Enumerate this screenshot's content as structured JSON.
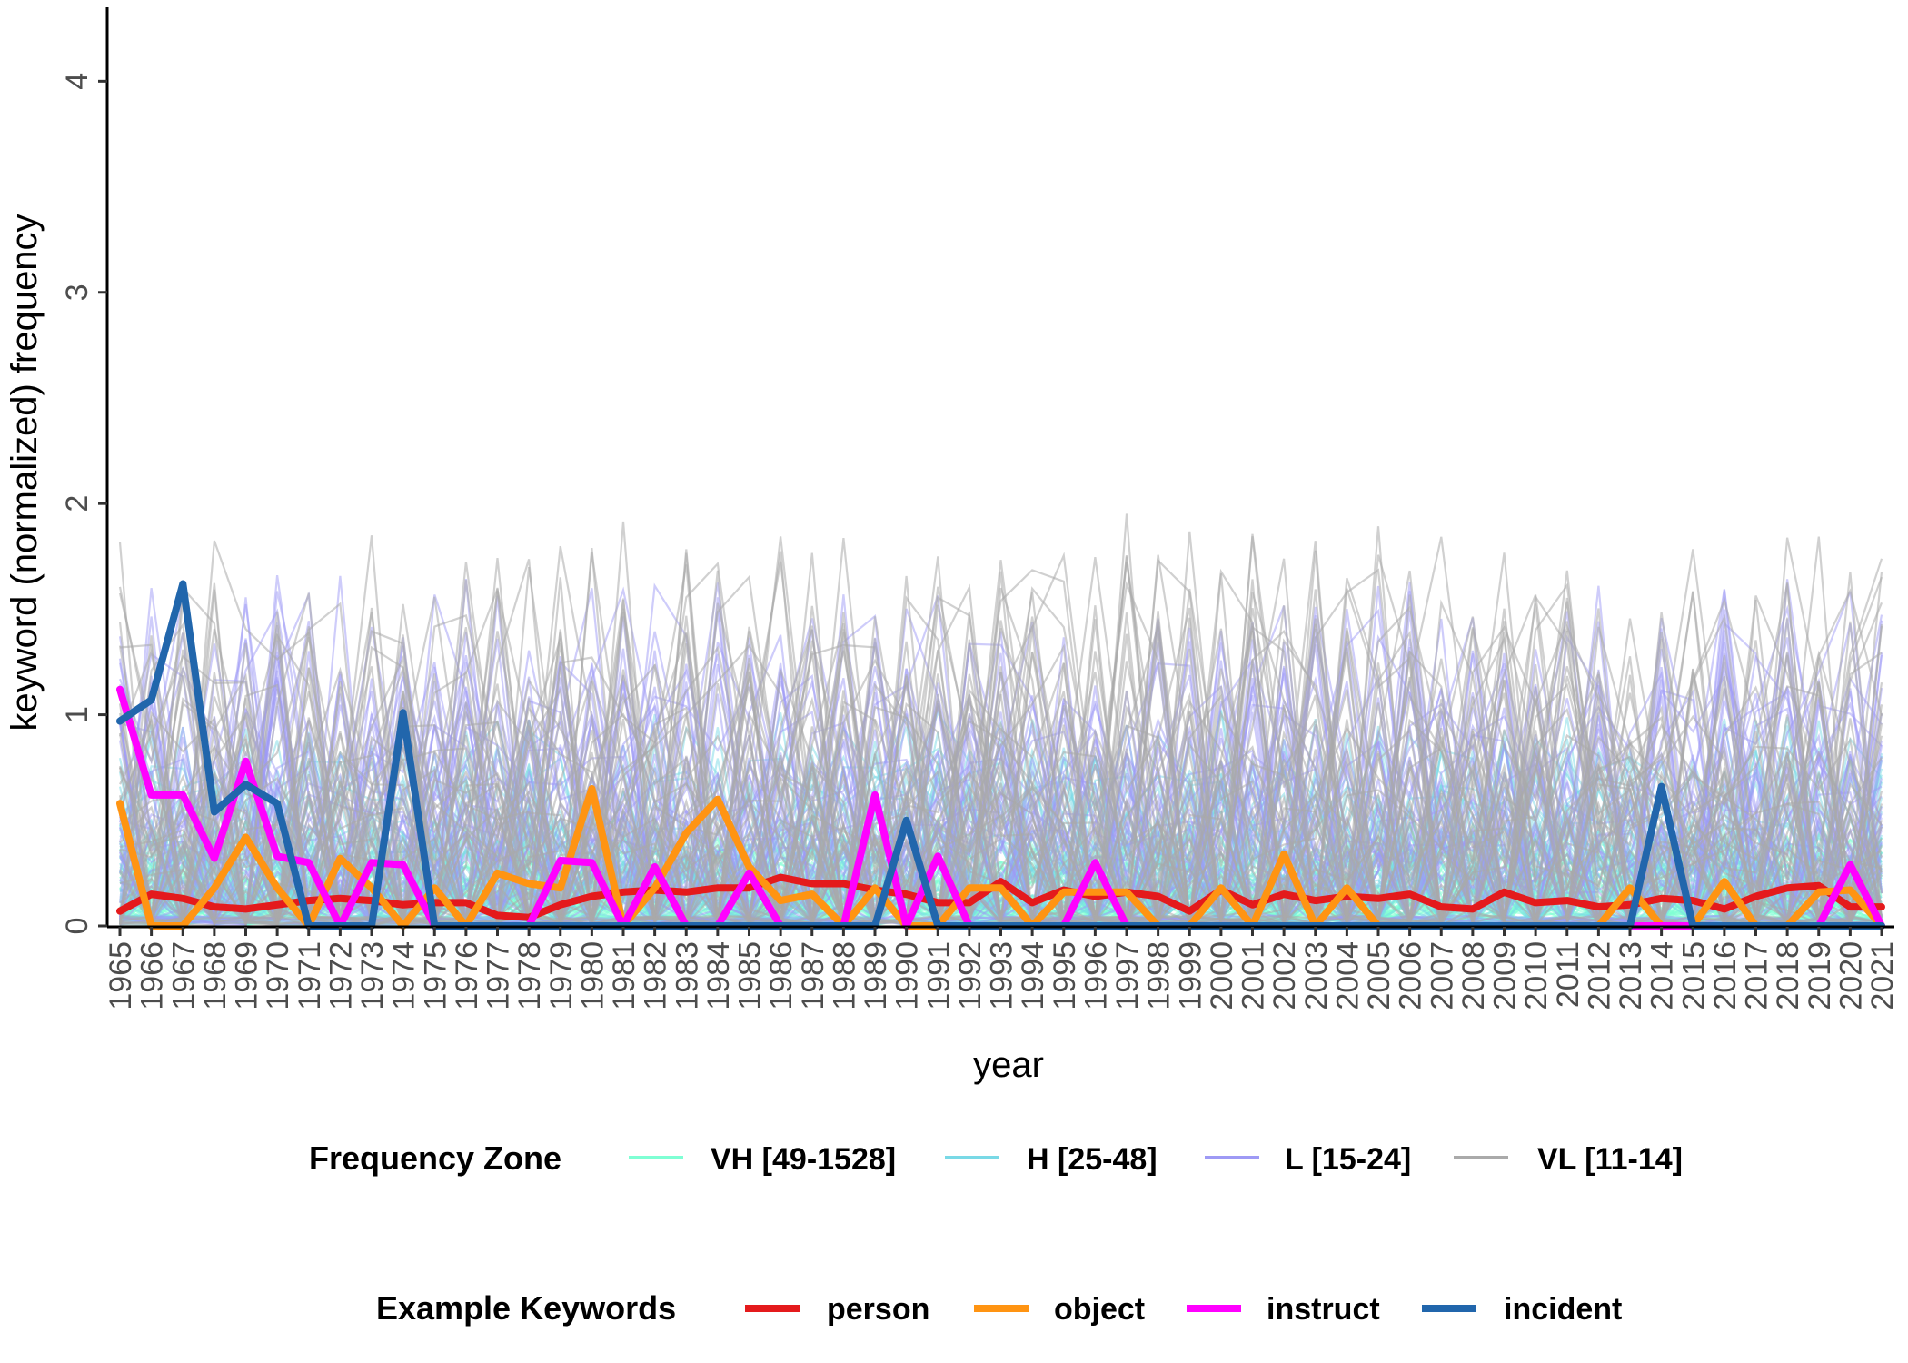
{
  "chart_data": {
    "type": "line",
    "title": "",
    "xlabel": "year",
    "ylabel": "keyword (normalized) frequency",
    "x": [
      1965,
      1966,
      1967,
      1968,
      1969,
      1970,
      1971,
      1972,
      1973,
      1974,
      1975,
      1976,
      1977,
      1978,
      1979,
      1980,
      1981,
      1982,
      1983,
      1984,
      1985,
      1986,
      1987,
      1988,
      1989,
      1990,
      1991,
      1992,
      1993,
      1994,
      1995,
      1996,
      1997,
      1998,
      1999,
      2000,
      2001,
      2002,
      2003,
      2004,
      2005,
      2006,
      2007,
      2008,
      2009,
      2010,
      2011,
      2012,
      2013,
      2014,
      2015,
      2016,
      2017,
      2018,
      2019,
      2020,
      2021
    ],
    "x_tick_labels": [
      "1965",
      "1966",
      "1967",
      "1968",
      "1969",
      "1970",
      "1971",
      "1972",
      "1973",
      "1974",
      "1975",
      "1976",
      "1977",
      "1978",
      "1979",
      "1980",
      "1981",
      "1982",
      "1983",
      "1984",
      "1985",
      "1986",
      "1987",
      "1988",
      "1989",
      "1990",
      "1991",
      "1992",
      "1993",
      "1994",
      "1995",
      "1996",
      "1997",
      "1998",
      "1999",
      "2000",
      "2001",
      "2002",
      "2003",
      "2004",
      "2005",
      "2006",
      "2007",
      "2008",
      "2009",
      "2010",
      "2011",
      "2012",
      "2013",
      "2014",
      "2015",
      "2016",
      "2017",
      "2018",
      "2019",
      "2020",
      "2021"
    ],
    "ylim": [
      0,
      4.35
    ],
    "y_ticks": [
      0,
      1,
      2,
      3,
      4
    ],
    "y_tick_labels": [
      "0",
      "1",
      "2",
      "3",
      "4"
    ],
    "grid": false,
    "legends": [
      {
        "title": "Frequency Zone",
        "placement": "bottom",
        "entries": [
          {
            "label": "VH [49-1528]",
            "color": "#7FFFD4"
          },
          {
            "label": "H [25-48]",
            "color": "#79D9E6"
          },
          {
            "label": "L [15-24]",
            "color": "#9E9AF5"
          },
          {
            "label": "VL [11-14]",
            "color": "#AAAAAA"
          }
        ]
      },
      {
        "title": "Example Keywords",
        "placement": "bottom",
        "entries": [
          {
            "label": "person",
            "color": "#E41A1C"
          },
          {
            "label": "object",
            "color": "#FF9412"
          },
          {
            "label": "instruct",
            "color": "#FF00FF"
          },
          {
            "label": "incident",
            "color": "#2166AC"
          }
        ]
      }
    ],
    "background_zones": [
      {
        "zone": "VH [49-1528]",
        "color": "#7FFFD4",
        "base": 0.18,
        "amplitude": 0.22
      },
      {
        "zone": "H [25-48]",
        "color": "#79D9E6",
        "base": 0.35,
        "amplitude": 0.45
      },
      {
        "zone": "L [15-24]",
        "color": "#9E9AF5",
        "base": 0.5,
        "amplitude": 0.75
      },
      {
        "zone": "VL [11-14]",
        "color": "#AAAAAA",
        "base": 0.55,
        "amplitude": 0.9
      }
    ],
    "series": [
      {
        "name": "person",
        "color": "#E41A1C",
        "values": [
          0.07,
          0.15,
          0.13,
          0.09,
          0.08,
          0.1,
          0.12,
          0.13,
          0.12,
          0.1,
          0.11,
          0.11,
          0.05,
          0.04,
          0.1,
          0.14,
          0.16,
          0.17,
          0.16,
          0.18,
          0.18,
          0.23,
          0.2,
          0.2,
          0.17,
          0.15,
          0.11,
          0.11,
          0.21,
          0.11,
          0.17,
          0.14,
          0.16,
          0.14,
          0.07,
          0.17,
          0.1,
          0.15,
          0.12,
          0.14,
          0.13,
          0.15,
          0.09,
          0.08,
          0.16,
          0.11,
          0.12,
          0.09,
          0.1,
          0.13,
          0.12,
          0.08,
          0.14,
          0.18,
          0.19,
          0.09,
          0.09
        ]
      },
      {
        "name": "object",
        "color": "#FF9412",
        "values": [
          0.58,
          0.0,
          0.0,
          0.18,
          0.42,
          0.18,
          0.0,
          0.32,
          0.18,
          0.0,
          0.18,
          0.0,
          0.25,
          0.2,
          0.18,
          0.65,
          0.0,
          0.18,
          0.44,
          0.6,
          0.28,
          0.12,
          0.15,
          0.0,
          0.18,
          0.0,
          0.0,
          0.18,
          0.18,
          0.0,
          0.16,
          0.16,
          0.16,
          0.0,
          0.0,
          0.18,
          0.0,
          0.34,
          0.0,
          0.18,
          0.0,
          0.0,
          0.0,
          0.0,
          0.0,
          0.0,
          0.0,
          0.0,
          0.18,
          0.0,
          0.0,
          0.21,
          0.0,
          0.0,
          0.16,
          0.17,
          0.0
        ]
      },
      {
        "name": "instruct",
        "color": "#FF00FF",
        "values": [
          1.12,
          0.62,
          0.62,
          0.32,
          0.78,
          0.33,
          0.3,
          0.0,
          0.3,
          0.29,
          0.0,
          0.0,
          0.0,
          0.0,
          0.31,
          0.3,
          0.0,
          0.28,
          0.0,
          0.0,
          0.25,
          0.0,
          0.0,
          0.0,
          0.62,
          0.0,
          0.33,
          0.0,
          0.0,
          0.0,
          0.0,
          0.3,
          0.0,
          0.0,
          0.0,
          0.0,
          0.0,
          0.0,
          0.0,
          0.0,
          0.0,
          0.0,
          0.0,
          0.0,
          0.0,
          0.0,
          0.0,
          0.0,
          0.0,
          0.0,
          0.0,
          0.0,
          0.0,
          0.0,
          0.0,
          0.29,
          0.0
        ]
      },
      {
        "name": "incident",
        "color": "#2166AC",
        "values": [
          0.97,
          1.07,
          1.62,
          0.54,
          0.67,
          0.58,
          0.0,
          0.0,
          0.0,
          1.01,
          0.0,
          0.0,
          0.0,
          0.0,
          0.0,
          0.0,
          0.0,
          0.0,
          0.0,
          0.0,
          0.0,
          0.0,
          0.0,
          0.0,
          0.0,
          0.5,
          0.0,
          0.0,
          0.0,
          0.0,
          0.0,
          0.0,
          0.0,
          0.0,
          0.0,
          0.0,
          0.0,
          0.0,
          0.0,
          0.0,
          0.0,
          0.0,
          0.0,
          0.0,
          0.0,
          0.0,
          0.0,
          0.0,
          0.0,
          0.66,
          0.0,
          0.0,
          0.0,
          0.0,
          0.0,
          0.0,
          0.0
        ]
      }
    ]
  }
}
